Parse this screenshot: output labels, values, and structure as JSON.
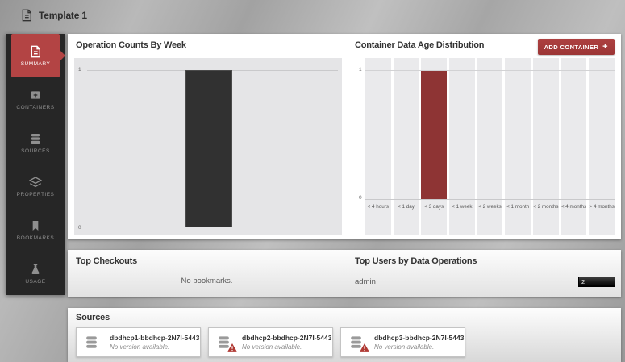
{
  "header": {
    "title": "Template 1"
  },
  "sidebar": {
    "items": [
      {
        "label": "SUMMARY",
        "icon": "document-icon",
        "active": true
      },
      {
        "label": "CONTAINERS",
        "icon": "containers-icon",
        "active": false
      },
      {
        "label": "SOURCES",
        "icon": "database-icon",
        "active": false
      },
      {
        "label": "PROPERTIES",
        "icon": "layers-icon",
        "active": false
      },
      {
        "label": "BOOKMARKS",
        "icon": "bookmark-icon",
        "active": false
      },
      {
        "label": "USAGE",
        "icon": "flask-icon",
        "active": false
      }
    ]
  },
  "chart_data": [
    {
      "type": "bar",
      "title": "Operation Counts By Week",
      "categories": [
        ""
      ],
      "values": [
        1
      ],
      "ylim": [
        0,
        1
      ],
      "ytick_top": "1",
      "ytick_bottom": "0",
      "bar_color": "#313131"
    },
    {
      "type": "bar",
      "title": "Container Data Age Distribution",
      "add_button_label": "ADD CONTAINER",
      "categories": [
        "< 4 hours",
        "< 1 day",
        "< 3 days",
        "< 1 week",
        "< 2 weeks",
        "< 1 month",
        "< 2 months",
        "< 4 months",
        "> 4 months"
      ],
      "values": [
        0,
        0,
        1,
        0,
        0,
        0,
        0,
        0,
        0
      ],
      "ylim": [
        0,
        1
      ],
      "ytick_top": "1",
      "ytick_bottom": "0",
      "bar_color": "#8e3434"
    }
  ],
  "top_checkouts": {
    "title": "Top Checkouts",
    "empty_text": "No bookmarks."
  },
  "top_users": {
    "title": "Top Users by Data Operations",
    "rows": [
      {
        "user": "admin",
        "value": 2
      }
    ]
  },
  "sources": {
    "title": "Sources",
    "cards": [
      {
        "name": "dbdhcp1-bbdhcp-2N7I-5443…",
        "status": "No version available.",
        "warning": false
      },
      {
        "name": "dbdhcp2-bbdhcp-2N7I-5443…",
        "status": "No version available.",
        "warning": true
      },
      {
        "name": "dbdhcp3-bbdhcp-2N7I-5443…",
        "status": "No version available.",
        "warning": true
      }
    ]
  },
  "colors": {
    "accent_red": "#b34444",
    "button_red": "#a03a3a",
    "bar_dark": "#313131",
    "bar_red": "#8e3434",
    "sidebar_bg": "#262626"
  }
}
